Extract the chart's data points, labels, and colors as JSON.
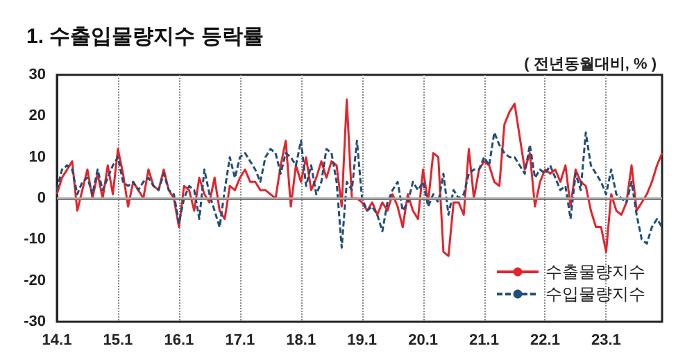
{
  "chart_data": {
    "type": "line",
    "title": "1. 수출입물량지수 등락률",
    "ylabel": "( 전년동월대비, % )",
    "categories": [
      "14.1",
      null,
      null,
      null,
      null,
      null,
      null,
      null,
      null,
      null,
      null,
      null,
      "15.1",
      null,
      null,
      null,
      null,
      null,
      null,
      null,
      null,
      null,
      null,
      null,
      "16.1",
      null,
      null,
      null,
      null,
      null,
      null,
      null,
      null,
      null,
      null,
      null,
      "17.1",
      null,
      null,
      null,
      null,
      null,
      null,
      null,
      null,
      null,
      null,
      null,
      "18.1",
      null,
      null,
      null,
      null,
      null,
      null,
      null,
      null,
      null,
      null,
      null,
      "19.1",
      null,
      null,
      null,
      null,
      null,
      null,
      null,
      null,
      null,
      null,
      null,
      "20.1",
      null,
      null,
      null,
      null,
      null,
      null,
      null,
      null,
      null,
      null,
      null,
      "21.1",
      null,
      null,
      null,
      null,
      null,
      null,
      null,
      null,
      null,
      null,
      null,
      "22.1",
      null,
      null,
      null,
      null,
      null,
      null,
      null,
      null,
      null,
      null,
      null,
      "23.1",
      null,
      null,
      null,
      null,
      null,
      null,
      null,
      null,
      null,
      null,
      null
    ],
    "series": [
      {
        "name": "수출물량지수",
        "color": "#e3242b",
        "line_style": "solid",
        "values": [
          1,
          5,
          7,
          9,
          -3,
          2,
          7,
          0,
          6,
          0,
          8,
          1,
          12,
          6,
          -2,
          4,
          2,
          0,
          7,
          3,
          2,
          7,
          2,
          0,
          -7,
          3,
          2,
          -3,
          5,
          1,
          -1,
          5,
          -3,
          -5,
          3,
          2,
          5,
          7,
          4,
          4,
          2,
          2,
          1,
          0,
          8,
          14,
          -2,
          8,
          4,
          10,
          2,
          5,
          9,
          5,
          9,
          8,
          -2,
          24,
          0,
          0,
          -1,
          -3,
          -1,
          -4,
          -1,
          -3,
          1,
          -2,
          -7,
          1,
          -3,
          -5,
          7,
          -1,
          11,
          10,
          -13,
          -14,
          -1,
          -1,
          -4,
          12,
          0,
          7,
          9,
          8,
          4,
          3,
          18,
          21,
          23,
          15,
          7,
          11,
          -2,
          4,
          7,
          6,
          7,
          4,
          8,
          -2,
          7,
          4,
          3,
          -3,
          -7,
          -7,
          -13,
          1,
          -3,
          -4,
          -1,
          8,
          -3,
          -1,
          1,
          4,
          8,
          11
        ]
      },
      {
        "name": "수입물량지수",
        "color": "#1f4e79",
        "line_style": "dashed",
        "values": [
          2,
          7,
          8,
          7,
          1,
          4,
          5,
          1,
          7,
          2,
          5,
          8,
          10,
          4,
          3,
          4,
          2,
          4,
          5,
          3,
          2,
          6,
          2,
          1,
          -6,
          0,
          3,
          2,
          -5,
          7,
          1,
          -3,
          -7,
          2,
          10,
          5,
          10,
          11,
          9,
          7,
          4,
          10,
          12,
          11,
          6,
          11,
          10,
          8,
          14,
          3,
          8,
          1,
          4,
          12,
          11,
          4,
          -12,
          4,
          2,
          14,
          0,
          -3,
          -2,
          -4,
          -8,
          -1,
          2,
          4,
          -3,
          -1,
          4,
          2,
          4,
          -2,
          1,
          -1,
          6,
          -4,
          2,
          0,
          1,
          6,
          7,
          7,
          10,
          8,
          16,
          13,
          11,
          10,
          10,
          8,
          6,
          13,
          5,
          7,
          6,
          8,
          5,
          2,
          3,
          -5,
          6,
          2,
          16,
          8,
          6,
          4,
          1,
          7,
          1,
          0,
          -1,
          4,
          -4,
          -10,
          -11,
          -7,
          -5,
          -7
        ]
      }
    ],
    "ylim": [
      -30,
      30
    ],
    "yticks": [
      -30,
      -20,
      -10,
      0,
      10,
      20,
      30
    ],
    "grid": "x",
    "legend": "bottom right",
    "ref_lines": [
      {
        "axis": "y",
        "value": 0,
        "color": "#a6a6a6"
      }
    ]
  }
}
